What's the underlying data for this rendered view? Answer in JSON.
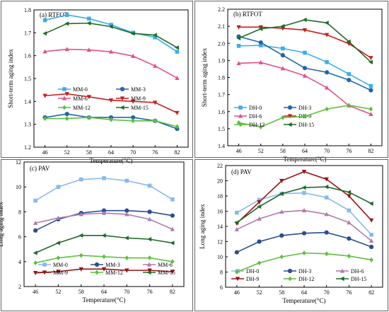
{
  "colors": {
    "c0": "#3aaee8",
    "c3": "#2466a8",
    "c6": "#e0528a",
    "c9": "#c81e1e",
    "c12": "#5cbf3a",
    "c15": "#1f6b2a",
    "light": "#8ab8ee",
    "navy": "#2a4d8f",
    "pinkg": "#b07ab0",
    "darkred": "#9a1212"
  },
  "chart_data": [
    {
      "type": "line",
      "title": "(a) RTFOT",
      "xlabel": "Temperature(°C)",
      "ylabel": "Short-term aging index",
      "x": [
        46,
        52,
        58,
        64,
        70,
        76,
        82
      ],
      "xticks": [
        "46",
        "52",
        "58",
        "64",
        "70",
        "76",
        "82"
      ],
      "ylim": [
        1.2,
        1.8
      ],
      "yticks": [
        "1.2",
        "1.3",
        "1.4",
        "1.5",
        "1.6",
        "1.7",
        "1.8"
      ],
      "series": [
        {
          "name": "MM-0",
          "values": [
            1.755,
            1.778,
            1.762,
            1.735,
            1.7,
            1.68,
            1.617
          ],
          "marker": "square",
          "color": "c0"
        },
        {
          "name": "MM-3",
          "values": [
            1.33,
            1.345,
            1.33,
            1.33,
            1.33,
            1.315,
            1.28
          ],
          "marker": "circle",
          "color": "c3"
        },
        {
          "name": "MM-6",
          "values": [
            1.618,
            1.628,
            1.625,
            1.617,
            1.598,
            1.555,
            1.502
          ],
          "marker": "triangle-up",
          "color": "c6"
        },
        {
          "name": "MM-9",
          "values": [
            1.425,
            1.433,
            1.42,
            1.405,
            1.4,
            1.395,
            1.35
          ],
          "marker": "triangle-down",
          "color": "c9"
        },
        {
          "name": "MM-12",
          "values": [
            1.325,
            1.325,
            1.33,
            1.32,
            1.315,
            1.315,
            1.29
          ],
          "marker": "diamond",
          "color": "c12"
        },
        {
          "name": "MM-15",
          "values": [
            1.697,
            1.74,
            1.742,
            1.727,
            1.697,
            1.69,
            1.635
          ],
          "marker": "triangle-left",
          "color": "c15"
        }
      ],
      "legend": "bottom-left"
    },
    {
      "type": "line",
      "title": "(b) RTFOT",
      "xlabel": "Temperature(°C)",
      "ylabel": "Short-term aging index",
      "x": [
        46,
        52,
        58,
        64,
        70,
        76,
        82
      ],
      "xticks": [
        "46",
        "52",
        "58",
        "64",
        "70",
        "76",
        "82"
      ],
      "ylim": [
        1.4,
        2.2
      ],
      "yticks": [
        "1.4",
        "1.5",
        "1.6",
        "1.7",
        "1.8",
        "1.9",
        "2.0",
        "2.1",
        "2.2"
      ],
      "series": [
        {
          "name": "DH-0",
          "values": [
            1.985,
            1.988,
            1.97,
            1.945,
            1.89,
            1.82,
            1.75
          ],
          "marker": "square",
          "color": "c0"
        },
        {
          "name": "DH-3",
          "values": [
            2.04,
            2.005,
            1.93,
            1.855,
            1.83,
            1.785,
            1.725
          ],
          "marker": "circle",
          "color": "c3"
        },
        {
          "name": "DH-6",
          "values": [
            1.883,
            1.888,
            1.853,
            1.81,
            1.74,
            1.635,
            1.585
          ],
          "marker": "triangle-up",
          "color": "c6"
        },
        {
          "name": "DH-9",
          "values": [
            2.095,
            2.095,
            2.088,
            2.078,
            2.05,
            1.998,
            1.915
          ],
          "marker": "triangle-down",
          "color": "c9"
        },
        {
          "name": "DH-12",
          "values": [
            1.535,
            1.51,
            1.565,
            1.572,
            1.615,
            1.637,
            1.615
          ],
          "marker": "diamond",
          "color": "c12"
        },
        {
          "name": "DH-15",
          "values": [
            2.03,
            2.085,
            2.1,
            2.138,
            2.12,
            2.01,
            1.89
          ],
          "marker": "triangle-left",
          "color": "c15"
        }
      ],
      "legend": "bottom-left"
    },
    {
      "type": "line",
      "title": "(c) PAV",
      "xlabel": "Temperature(°C)",
      "ylabel": "Long aging index",
      "x": [
        46,
        52,
        58,
        64,
        70,
        76,
        82
      ],
      "xticks": [
        "46",
        "52",
        "58",
        "64",
        "70",
        "76",
        "82"
      ],
      "ylim": [
        2,
        12
      ],
      "yticks": [
        "2",
        "4",
        "6",
        "8",
        "10",
        "12"
      ],
      "series": [
        {
          "name": "MM-0",
          "values": [
            8.9,
            10.0,
            10.6,
            10.7,
            10.5,
            10.1,
            9.0
          ],
          "marker": "square",
          "color": "light"
        },
        {
          "name": "MM-3",
          "values": [
            6.5,
            7.4,
            7.9,
            8.1,
            8.1,
            8.0,
            7.7
          ],
          "marker": "circle",
          "color": "navy"
        },
        {
          "name": "MM-6",
          "values": [
            7.1,
            7.5,
            7.8,
            7.9,
            7.8,
            7.4,
            6.6
          ],
          "marker": "triangle-up",
          "color": "pinkg"
        },
        {
          "name": "MM-9",
          "values": [
            3.1,
            3.2,
            3.4,
            3.4,
            3.3,
            3.3,
            3.2
          ],
          "marker": "triangle-down",
          "color": "darkred"
        },
        {
          "name": "MM-12",
          "values": [
            3.9,
            4.3,
            4.5,
            4.4,
            4.3,
            4.3,
            4.0
          ],
          "marker": "diamond",
          "color": "c12"
        },
        {
          "name": "MM-15",
          "values": [
            4.7,
            5.5,
            6.1,
            6.1,
            5.9,
            5.8,
            5.5
          ],
          "marker": "triangle-left",
          "color": "c15"
        }
      ],
      "legend": "bottom-center"
    },
    {
      "type": "line",
      "title": "(d) PAV",
      "xlabel": "Temperature(°C)",
      "ylabel": "Long aging index",
      "x": [
        46,
        52,
        58,
        64,
        70,
        76,
        82
      ],
      "xticks": [
        "46",
        "52",
        "58",
        "64",
        "70",
        "76",
        "82"
      ],
      "ylim": [
        6,
        22
      ],
      "yticks": [
        "6",
        "8",
        "10",
        "12",
        "14",
        "16",
        "18",
        "20",
        "22"
      ],
      "series": [
        {
          "name": "DH-0",
          "values": [
            15.8,
            17.5,
            18.3,
            18.4,
            17.8,
            16.1,
            12.9
          ],
          "marker": "square",
          "color": "light"
        },
        {
          "name": "DH-3",
          "values": [
            10.6,
            12.0,
            12.8,
            13.1,
            13.2,
            12.4,
            11.3
          ],
          "marker": "circle",
          "color": "navy"
        },
        {
          "name": "DH-6",
          "values": [
            13.6,
            15.0,
            15.9,
            16.1,
            15.6,
            14.5,
            12.1
          ],
          "marker": "triangle-up",
          "color": "pinkg"
        },
        {
          "name": "DH-9",
          "values": [
            14.4,
            17.2,
            20.0,
            21.2,
            20.2,
            18.0,
            14.8
          ],
          "marker": "triangle-down",
          "color": "darkred"
        },
        {
          "name": "DH-12",
          "values": [
            8.0,
            9.2,
            10.0,
            10.5,
            10.4,
            10.1,
            9.6
          ],
          "marker": "diamond",
          "color": "c12"
        },
        {
          "name": "DH-15",
          "values": [
            14.5,
            16.6,
            18.3,
            19.1,
            19.2,
            18.5,
            17.0
          ],
          "marker": "triangle-left",
          "color": "c15"
        }
      ],
      "legend": "bottom-center"
    }
  ]
}
